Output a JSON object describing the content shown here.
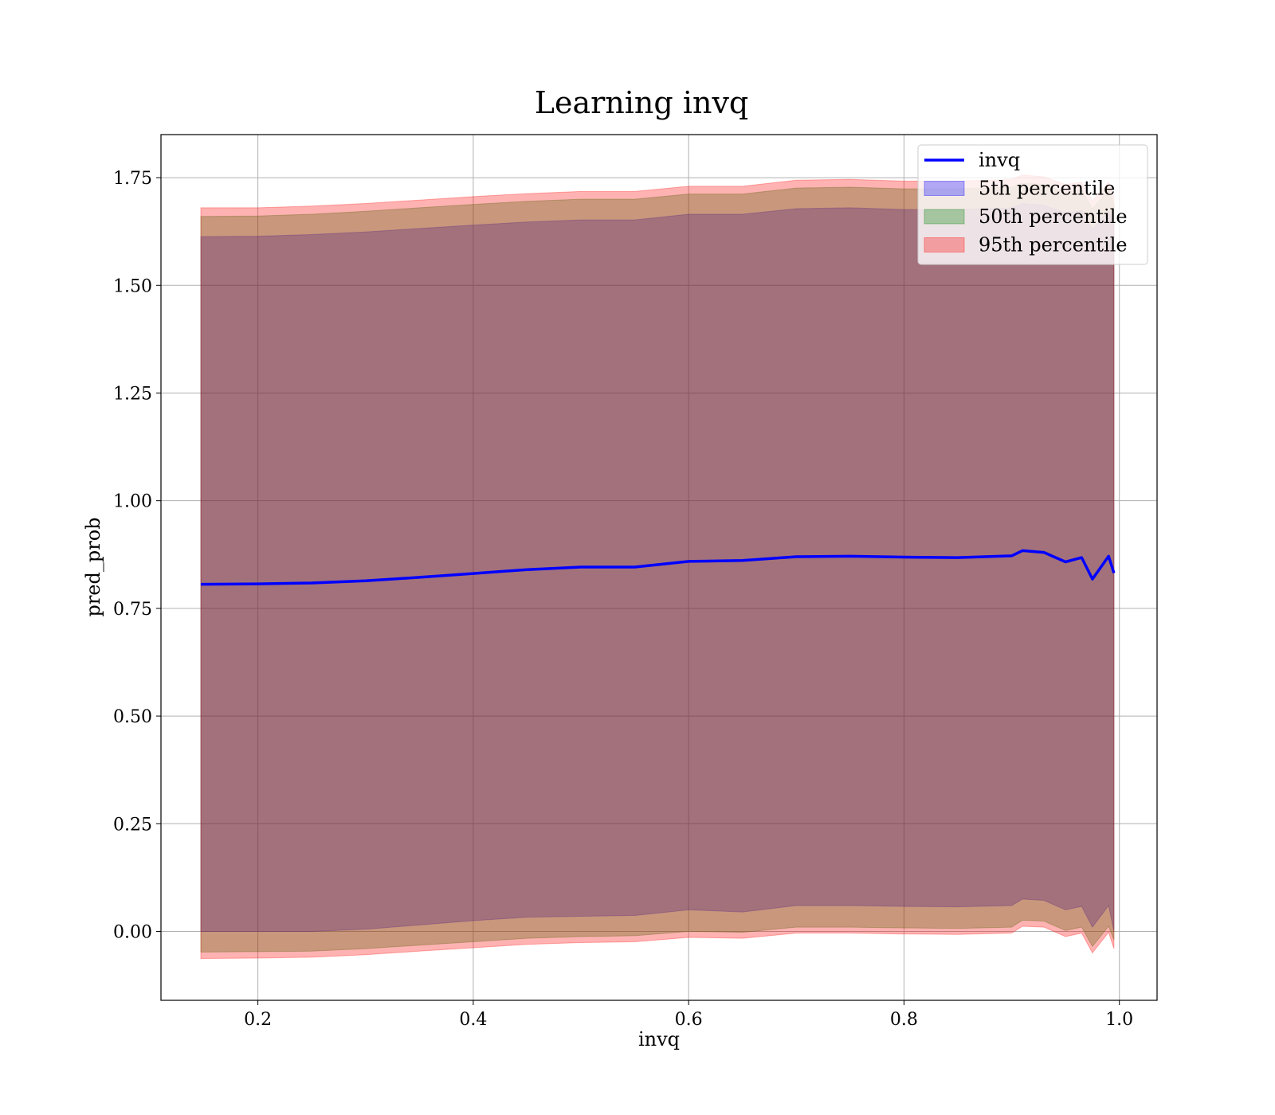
{
  "chart_data": {
    "type": "area",
    "title": "Learning invq",
    "xlabel": "invq",
    "ylabel": "pred_prob",
    "xlim": [
      0.11,
      1.035
    ],
    "ylim": [
      -0.16,
      1.85
    ],
    "x_ticks": [
      0.2,
      0.4,
      0.6,
      0.8,
      1.0
    ],
    "x_tick_labels": [
      "0.2",
      "0.4",
      "0.6",
      "0.8",
      "1.0"
    ],
    "y_ticks": [
      0.0,
      0.25,
      0.5,
      0.75,
      1.0,
      1.25,
      1.5,
      1.75
    ],
    "y_tick_labels": [
      "0.00",
      "0.25",
      "0.50",
      "0.75",
      "1.00",
      "1.25",
      "1.50",
      "1.75"
    ],
    "grid": true,
    "legend_position": "top-right",
    "x": [
      0.147,
      0.2,
      0.25,
      0.3,
      0.35,
      0.4,
      0.45,
      0.5,
      0.55,
      0.6,
      0.65,
      0.7,
      0.75,
      0.8,
      0.85,
      0.9,
      0.91,
      0.93,
      0.95,
      0.965,
      0.975,
      0.99,
      0.995
    ],
    "series": [
      {
        "name": "invq",
        "kind": "line",
        "color": "#0000ff",
        "values": [
          0.806,
          0.807,
          0.809,
          0.814,
          0.822,
          0.831,
          0.84,
          0.846,
          0.846,
          0.859,
          0.861,
          0.87,
          0.871,
          0.869,
          0.868,
          0.872,
          0.884,
          0.88,
          0.858,
          0.868,
          0.818,
          0.871,
          0.832
        ]
      },
      {
        "name": "5th percentile",
        "kind": "band",
        "color": "#0000ff",
        "lower": [
          0.0,
          0.0,
          0.0,
          0.005,
          0.015,
          0.025,
          0.033,
          0.035,
          0.037,
          0.05,
          0.045,
          0.06,
          0.06,
          0.058,
          0.057,
          0.06,
          0.075,
          0.072,
          0.05,
          0.058,
          0.01,
          0.06,
          0.0
        ],
        "upper": [
          1.613,
          1.614,
          1.618,
          1.624,
          1.632,
          1.64,
          1.647,
          1.652,
          1.652,
          1.665,
          1.665,
          1.678,
          1.68,
          1.676,
          1.676,
          1.68,
          1.69,
          1.686,
          1.668,
          1.674,
          1.63,
          1.674,
          1.64
        ]
      },
      {
        "name": "50th percentile",
        "kind": "band",
        "color": "#008000",
        "lower": [
          -0.048,
          -0.047,
          -0.046,
          -0.04,
          -0.032,
          -0.024,
          -0.016,
          -0.012,
          -0.01,
          0.0,
          -0.002,
          0.01,
          0.01,
          0.008,
          0.007,
          0.01,
          0.026,
          0.024,
          0.002,
          0.01,
          -0.035,
          0.012,
          -0.02
        ],
        "upper": [
          1.66,
          1.661,
          1.665,
          1.672,
          1.68,
          1.688,
          1.695,
          1.7,
          1.7,
          1.712,
          1.712,
          1.726,
          1.728,
          1.724,
          1.724,
          1.728,
          1.738,
          1.734,
          1.716,
          1.722,
          1.678,
          1.722,
          1.688
        ]
      },
      {
        "name": "95th percentile",
        "kind": "band",
        "color": "#ff0000",
        "lower": [
          -0.063,
          -0.062,
          -0.06,
          -0.054,
          -0.046,
          -0.038,
          -0.03,
          -0.026,
          -0.024,
          -0.014,
          -0.016,
          -0.004,
          -0.004,
          -0.006,
          -0.007,
          -0.004,
          0.012,
          0.01,
          -0.012,
          -0.004,
          -0.05,
          -0.002,
          -0.04
        ],
        "upper": [
          1.68,
          1.68,
          1.684,
          1.69,
          1.698,
          1.706,
          1.713,
          1.718,
          1.718,
          1.73,
          1.73,
          1.744,
          1.746,
          1.742,
          1.742,
          1.746,
          1.756,
          1.752,
          1.734,
          1.74,
          1.696,
          1.74,
          1.706
        ]
      }
    ]
  }
}
